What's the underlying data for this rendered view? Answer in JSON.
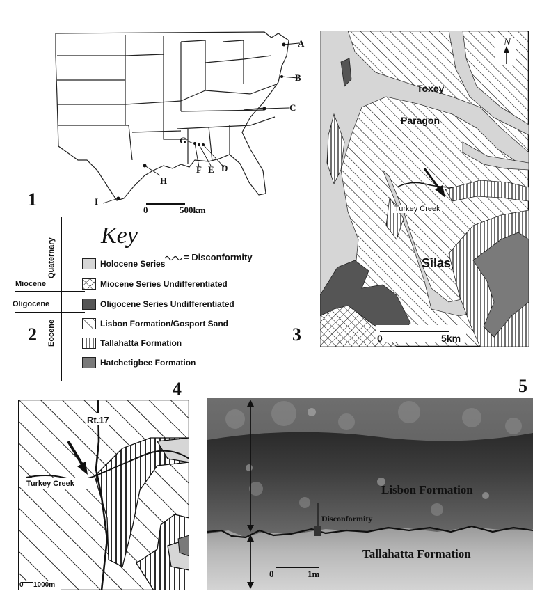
{
  "figure": {
    "panel_numbers": [
      "1",
      "2",
      "3",
      "4",
      "5"
    ]
  },
  "map1": {
    "site_labels": [
      "A",
      "B",
      "C",
      "D",
      "E",
      "F",
      "G",
      "H",
      "I"
    ],
    "scale_zero": "0",
    "scale_end": "500km"
  },
  "key": {
    "title": "Key",
    "disconformity": "= Disconformity",
    "eras": [
      "Quaternary",
      "Miocene",
      "Oligocene",
      "Eocene"
    ],
    "items": [
      {
        "label": "Holocene Series",
        "pattern": "holocene"
      },
      {
        "label": "Miocene Series Undifferentiated",
        "pattern": "miocene"
      },
      {
        "label": "Oligocene Series Undifferentiated",
        "pattern": "oligocene"
      },
      {
        "label": "Lisbon Formation/Gosport Sand",
        "pattern": "lisbon"
      },
      {
        "label": "Tallahatta Formation",
        "pattern": "tallahatta"
      },
      {
        "label": "Hatchetigbee Formation",
        "pattern": "hatchetigbee"
      }
    ],
    "colors": {
      "holocene": "#d6d6d6",
      "oligocene": "#555555",
      "hatchetigbee": "#7a7a7a"
    }
  },
  "map3": {
    "places": [
      "Toxey",
      "Paragon",
      "Turkey Creek",
      "Silas"
    ],
    "north": "N",
    "scale_zero": "0",
    "scale_end": "5km"
  },
  "map4": {
    "road": "Rt.17",
    "creek": "Turkey Creek",
    "scale_zero": "0",
    "scale_end": "1000m"
  },
  "photo5": {
    "upper": "Lisbon Formation",
    "lower": "Tallahatta Formation",
    "contact": "Disconformity",
    "scale_zero": "0",
    "scale_end": "1m"
  }
}
